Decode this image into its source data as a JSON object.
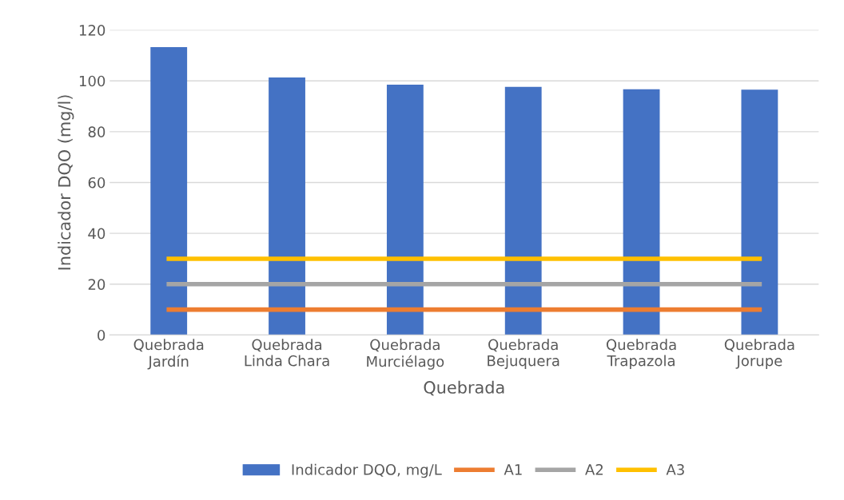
{
  "chart_data": {
    "type": "bar",
    "xlabel": "Quebrada",
    "ylabel": "Indicador DQO (mg/l)",
    "categories": [
      "Quebrada\nJardín",
      "Quebrada\nLinda Chara",
      "Quebrada\nMurciélago",
      "Quebrada\nBejuquera",
      "Quebrada\nTrapazola",
      "Quebrada\nJorupe"
    ],
    "series": [
      {
        "name": "Indicador DQO, mg/L",
        "color": "#4472c4",
        "values": [
          113.3,
          101.3,
          98.5,
          97.6,
          96.7,
          96.5
        ]
      },
      {
        "name": "A1",
        "type": "line",
        "color": "#ed7d31",
        "values": [
          10,
          10,
          10,
          10,
          10,
          10
        ]
      },
      {
        "name": "A2",
        "type": "line",
        "color": "#a5a5a5",
        "values": [
          20,
          20,
          20,
          20,
          20,
          20
        ]
      },
      {
        "name": "A3",
        "type": "line",
        "color": "#ffc000",
        "values": [
          30,
          30,
          30,
          30,
          30,
          30
        ]
      }
    ],
    "ylim": [
      0,
      120
    ],
    "yticks": [
      0,
      20,
      40,
      60,
      80,
      100,
      120
    ],
    "grid": "y",
    "legend": "bottom",
    "marker": "none",
    "line_style": "solid"
  }
}
